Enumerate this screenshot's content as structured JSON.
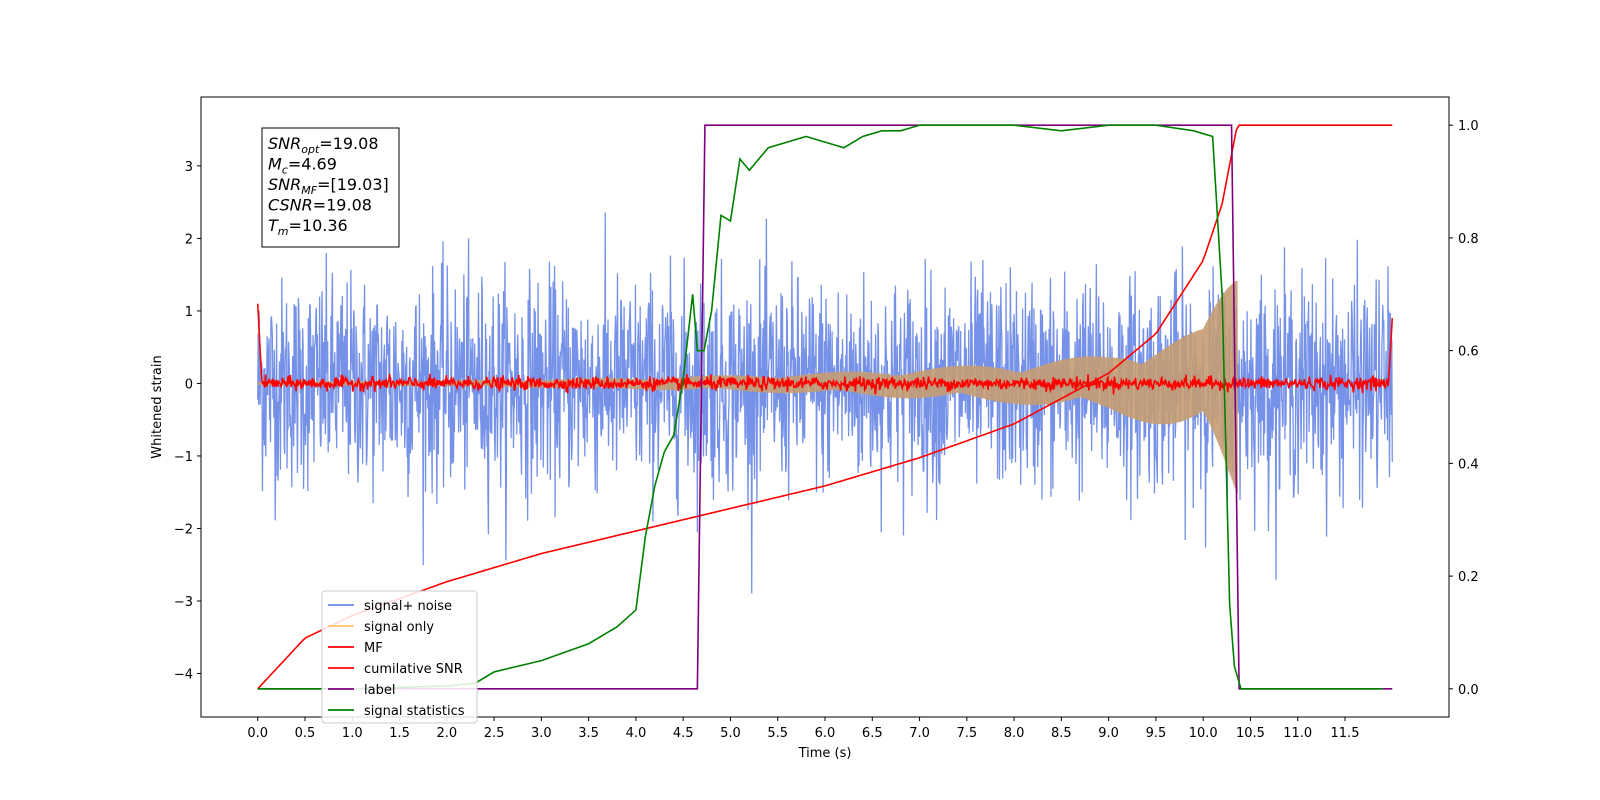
{
  "chart_data": {
    "type": "line",
    "title": "",
    "xlabel": "Time (s)",
    "ylabel": "Whitened strain",
    "y2label": "",
    "xlim": [
      -0.6,
      12.6
    ],
    "ylim": [
      -4.6,
      3.95
    ],
    "y2lim": [
      -0.05,
      1.05
    ],
    "x_ticks": [
      0.0,
      0.5,
      1.0,
      1.5,
      2.0,
      2.5,
      3.0,
      3.5,
      4.0,
      4.5,
      5.0,
      5.5,
      6.0,
      6.5,
      7.0,
      7.5,
      8.0,
      8.5,
      9.0,
      9.5,
      10.0,
      10.5,
      11.0,
      11.5
    ],
    "x_tick_labels": [
      "0.0",
      "0.5",
      "1.0",
      "1.5",
      "2.0",
      "2.5",
      "3.0",
      "3.5",
      "4.0",
      "4.5",
      "5.0",
      "5.5",
      "6.0",
      "6.5",
      "7.0",
      "7.5",
      "8.0",
      "8.5",
      "9.0",
      "9.5",
      "10.0",
      "10.5",
      "11.0",
      "11.5"
    ],
    "y_ticks": [
      3,
      2,
      1,
      0,
      -1,
      -2,
      -3,
      -4
    ],
    "y_tick_labels": [
      "3",
      "2",
      "1",
      "0",
      "−1",
      "−2",
      "−3",
      "−4"
    ],
    "y2_ticks": [
      1.0,
      0.8,
      0.6,
      0.4,
      0.2,
      0.0
    ],
    "y2_tick_labels": [
      "1.0",
      "0.8",
      "0.6",
      "0.4",
      "0.2",
      "0.0"
    ],
    "grid": false,
    "legend_position": "lower-left",
    "series": [
      {
        "name": "signal+ noise",
        "color": "#6a89e6",
        "axis": "left",
        "kind": "noise",
        "x_range": [
          0,
          12
        ],
        "approx_amplitude": 1.6
      },
      {
        "name": "signal only",
        "color": "#ffc266",
        "axis": "left",
        "kind": "chirp",
        "x_range": [
          0,
          10.36
        ],
        "envelope_x": [
          0,
          2,
          4,
          6,
          8,
          9,
          10,
          10.36
        ],
        "envelope_y": [
          0.02,
          0.04,
          0.08,
          0.15,
          0.28,
          0.4,
          0.75,
          1.7
        ]
      },
      {
        "name": "MF",
        "color": "#ff0000",
        "axis": "left",
        "kind": "mf",
        "x_range": [
          0,
          12
        ],
        "approx_amplitude": 0.08
      },
      {
        "name": "cumilative SNR",
        "color": "#ff0000",
        "axis": "right",
        "x": [
          0,
          0.5,
          1,
          2,
          3,
          4,
          5,
          6,
          7,
          8,
          9,
          9.5,
          10,
          10.2,
          10.36,
          12
        ],
        "y": [
          0,
          0.09,
          0.13,
          0.19,
          0.24,
          0.28,
          0.32,
          0.36,
          0.41,
          0.47,
          0.56,
          0.63,
          0.76,
          0.86,
          1.0,
          1.0
        ]
      },
      {
        "name": "label",
        "color": "#800080",
        "axis": "right",
        "x": [
          0,
          4.65,
          4.73,
          10.3,
          10.38,
          12
        ],
        "y": [
          0,
          0,
          1,
          1,
          0,
          0
        ]
      },
      {
        "name": "signal statistics",
        "color": "#008000",
        "axis": "right",
        "x": [
          0,
          1,
          2,
          2.3,
          2.5,
          3,
          3.5,
          3.8,
          4.0,
          4.1,
          4.2,
          4.3,
          4.4,
          4.5,
          4.6,
          4.65,
          4.72,
          4.8,
          4.9,
          5.0,
          5.1,
          5.2,
          5.4,
          5.6,
          5.8,
          6.0,
          6.2,
          6.4,
          6.6,
          6.8,
          7.0,
          7.5,
          8.0,
          8.5,
          9.0,
          9.5,
          9.9,
          10.1,
          10.2,
          10.28,
          10.33,
          10.4,
          11,
          11.9
        ],
        "y": [
          0,
          0,
          0.005,
          0.01,
          0.03,
          0.05,
          0.08,
          0.11,
          0.14,
          0.27,
          0.36,
          0.42,
          0.45,
          0.55,
          0.7,
          0.6,
          0.6,
          0.67,
          0.84,
          0.83,
          0.94,
          0.92,
          0.96,
          0.97,
          0.98,
          0.97,
          0.96,
          0.98,
          0.99,
          0.99,
          1.0,
          1.0,
          1.0,
          0.99,
          1.0,
          1.0,
          0.99,
          0.98,
          0.7,
          0.15,
          0.04,
          0.0,
          0.0,
          0.0
        ]
      }
    ],
    "annotation": {
      "lines": [
        {
          "sym": "SNR",
          "sub": "opt",
          "val": "=19.08"
        },
        {
          "sym": "M",
          "sub": "c",
          "val": "=4.69"
        },
        {
          "sym": "SNR",
          "sub": "MF",
          "val": "=[19.03]"
        },
        {
          "sym": "CSNR",
          "sub": "",
          "val": "=19.08"
        },
        {
          "sym": "T",
          "sub": "m",
          "val": "=10.36"
        }
      ]
    }
  }
}
